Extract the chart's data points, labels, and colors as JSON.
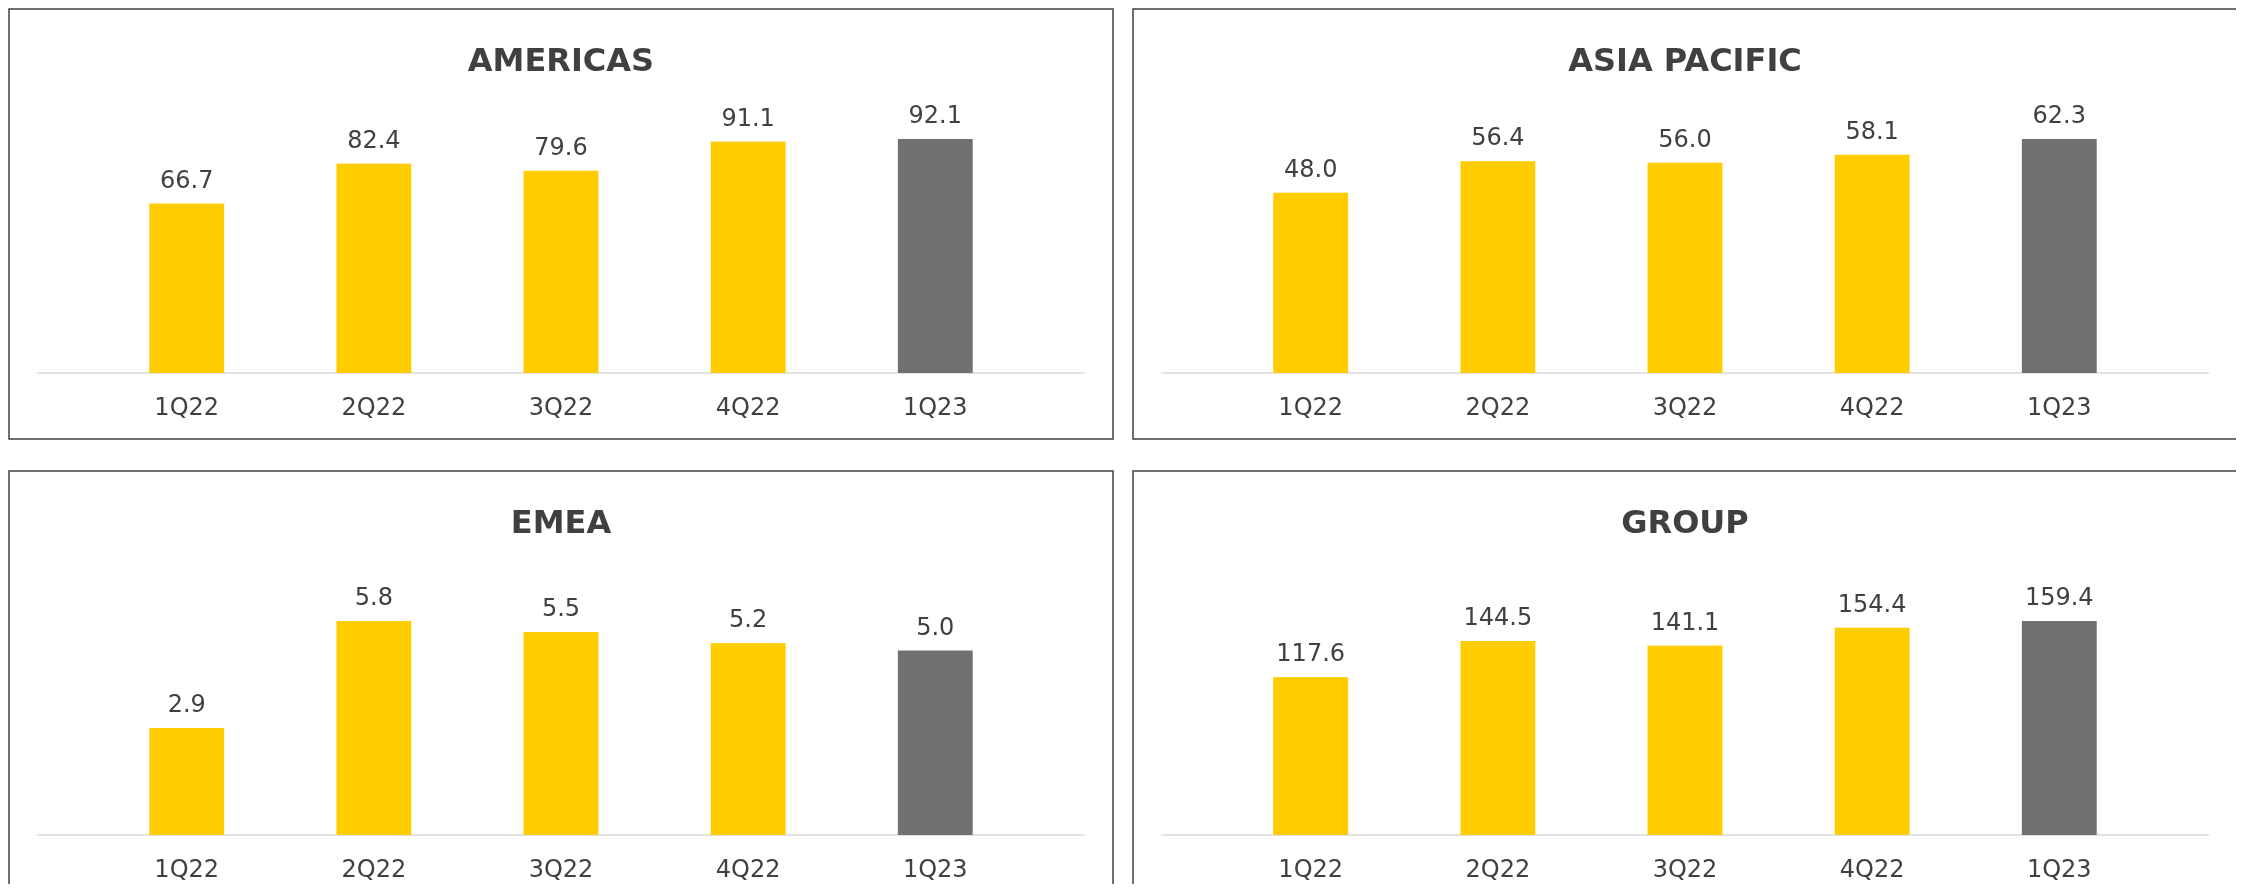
{
  "chart_data": [
    {
      "type": "bar",
      "title": "AMERICAS",
      "categories": [
        "1Q22",
        "2Q22",
        "3Q22",
        "4Q22",
        "1Q23"
      ],
      "values": [
        66.7,
        82.4,
        79.6,
        91.1,
        92.1
      ],
      "colors": [
        "#ffcc00",
        "#ffcc00",
        "#ffcc00",
        "#ffcc00",
        "#707070"
      ],
      "value_labels": [
        "66.7",
        "82.4",
        "79.6",
        "91.1",
        "92.1"
      ],
      "tick_labels": "x"
    },
    {
      "type": "bar",
      "title": "ASIA PACIFIC",
      "categories": [
        "1Q22",
        "2Q22",
        "3Q22",
        "4Q22",
        "1Q23"
      ],
      "values": [
        48.0,
        56.4,
        56.0,
        58.1,
        62.3
      ],
      "colors": [
        "#ffcc00",
        "#ffcc00",
        "#ffcc00",
        "#ffcc00",
        "#707070"
      ],
      "value_labels": [
        "48.0",
        "56.4",
        "56.0",
        "58.1",
        "62.3"
      ],
      "tick_labels": "x"
    },
    {
      "type": "bar",
      "title": "EMEA",
      "categories": [
        "1Q22",
        "2Q22",
        "3Q22",
        "4Q22",
        "1Q23"
      ],
      "values": [
        2.9,
        5.8,
        5.5,
        5.2,
        5.0
      ],
      "colors": [
        "#ffcc00",
        "#ffcc00",
        "#ffcc00",
        "#ffcc00",
        "#707070"
      ],
      "value_labels": [
        "2.9",
        "5.8",
        "5.5",
        "5.2",
        "5.0"
      ],
      "tick_labels": "x"
    },
    {
      "type": "bar",
      "title": "GROUP",
      "categories": [
        "1Q22",
        "2Q22",
        "3Q22",
        "4Q22",
        "1Q23"
      ],
      "values": [
        117.6,
        144.5,
        141.1,
        154.4,
        159.4
      ],
      "colors": [
        "#ffcc00",
        "#ffcc00",
        "#ffcc00",
        "#ffcc00",
        "#707070"
      ],
      "value_labels": [
        "117.6",
        "144.5",
        "141.1",
        "154.4",
        "159.4"
      ],
      "tick_labels": "x"
    }
  ]
}
